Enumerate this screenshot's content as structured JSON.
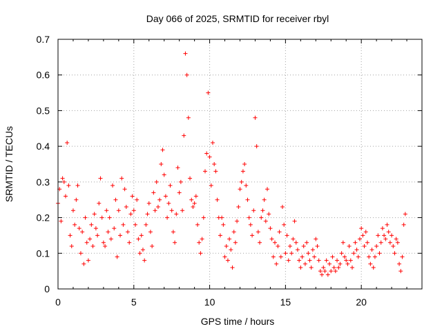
{
  "chart_data": {
    "type": "scatter",
    "title": "Day 066 of 2025, SRMTID for receiver rbyl",
    "xlabel": "GPS time / hours",
    "ylabel": "SRMTID / TECUs",
    "xlim": [
      0,
      24
    ],
    "ylim": [
      0,
      0.7
    ],
    "xticks": [
      0,
      5,
      10,
      15,
      20
    ],
    "yticks": [
      0,
      0.1,
      0.2,
      0.3,
      0.4,
      0.5,
      0.6,
      0.7
    ],
    "xtick_labels": [
      "0",
      "5",
      "10",
      "15",
      "20"
    ],
    "ytick_labels": [
      "0",
      "0.1",
      "0.2",
      "0.3",
      "0.4",
      "0.5",
      "0.6",
      "0.7"
    ],
    "grid": true,
    "marker": "+",
    "series": [
      {
        "name": "SRMTID",
        "color": "#ff0000",
        "x": [
          0.0,
          0.1,
          0.2,
          0.3,
          0.4,
          0.5,
          0.6,
          0.7,
          0.8,
          0.9,
          1.0,
          1.1,
          1.2,
          1.3,
          1.4,
          1.5,
          1.6,
          1.7,
          1.8,
          1.9,
          2.0,
          2.1,
          2.2,
          2.3,
          2.4,
          2.5,
          2.6,
          2.7,
          2.8,
          2.9,
          3.0,
          3.1,
          3.2,
          3.3,
          3.4,
          3.5,
          3.6,
          3.7,
          3.8,
          3.9,
          4.0,
          4.1,
          4.2,
          4.3,
          4.4,
          4.5,
          4.6,
          4.7,
          4.8,
          4.9,
          5.0,
          5.1,
          5.2,
          5.3,
          5.4,
          5.5,
          5.6,
          5.7,
          5.8,
          5.9,
          6.0,
          6.1,
          6.2,
          6.3,
          6.4,
          6.5,
          6.6,
          6.7,
          6.8,
          6.9,
          7.0,
          7.1,
          7.2,
          7.3,
          7.4,
          7.5,
          7.6,
          7.7,
          7.8,
          7.9,
          8.0,
          8.1,
          8.2,
          8.3,
          8.4,
          8.5,
          8.6,
          8.7,
          8.8,
          8.9,
          9.0,
          9.1,
          9.2,
          9.3,
          9.4,
          9.5,
          9.6,
          9.7,
          9.8,
          9.9,
          10.0,
          10.1,
          10.2,
          10.3,
          10.4,
          10.5,
          10.6,
          10.7,
          10.8,
          10.9,
          11.0,
          11.1,
          11.2,
          11.3,
          11.4,
          11.5,
          11.6,
          11.7,
          11.8,
          11.9,
          12.0,
          12.1,
          12.2,
          12.3,
          12.4,
          12.5,
          12.6,
          12.7,
          12.8,
          12.9,
          13.0,
          13.1,
          13.2,
          13.3,
          13.4,
          13.5,
          13.6,
          13.7,
          13.8,
          13.9,
          14.0,
          14.1,
          14.2,
          14.3,
          14.4,
          14.5,
          14.6,
          14.7,
          14.8,
          14.9,
          15.0,
          15.1,
          15.2,
          15.3,
          15.4,
          15.5,
          15.6,
          15.7,
          15.8,
          15.9,
          16.0,
          16.1,
          16.2,
          16.3,
          16.4,
          16.5,
          16.6,
          16.7,
          16.8,
          16.9,
          17.0,
          17.1,
          17.2,
          17.3,
          17.4,
          17.5,
          17.6,
          17.7,
          17.8,
          17.9,
          18.0,
          18.1,
          18.2,
          18.3,
          18.4,
          18.5,
          18.6,
          18.7,
          18.8,
          18.9,
          19.0,
          19.1,
          19.2,
          19.3,
          19.4,
          19.5,
          19.6,
          19.7,
          19.8,
          19.9,
          20.0,
          20.1,
          20.2,
          20.3,
          20.4,
          20.5,
          20.6,
          20.7,
          20.8,
          20.9,
          21.0,
          21.1,
          21.2,
          21.3,
          21.4,
          21.5,
          21.6,
          21.7,
          21.8,
          21.9,
          22.0,
          22.1,
          22.2,
          22.3,
          22.4,
          22.5,
          22.6,
          22.7,
          22.8,
          22.9
        ],
        "y": [
          0.24,
          0.28,
          0.19,
          0.31,
          0.3,
          0.26,
          0.41,
          0.29,
          0.15,
          0.12,
          0.22,
          0.18,
          0.25,
          0.29,
          0.17,
          0.1,
          0.16,
          0.07,
          0.2,
          0.13,
          0.08,
          0.14,
          0.18,
          0.12,
          0.21,
          0.17,
          0.15,
          0.24,
          0.31,
          0.2,
          0.13,
          0.12,
          0.22,
          0.16,
          0.2,
          0.14,
          0.29,
          0.17,
          0.25,
          0.09,
          0.22,
          0.15,
          0.31,
          0.18,
          0.28,
          0.23,
          0.16,
          0.13,
          0.21,
          0.26,
          0.22,
          0.18,
          0.25,
          0.14,
          0.1,
          0.15,
          0.11,
          0.08,
          0.18,
          0.21,
          0.24,
          0.16,
          0.12,
          0.27,
          0.22,
          0.3,
          0.23,
          0.25,
          0.35,
          0.39,
          0.32,
          0.26,
          0.2,
          0.24,
          0.29,
          0.22,
          0.16,
          0.13,
          0.21,
          0.34,
          0.27,
          0.3,
          0.22,
          0.43,
          0.66,
          0.6,
          0.48,
          0.31,
          0.25,
          0.23,
          0.24,
          0.26,
          0.18,
          0.13,
          0.1,
          0.14,
          0.2,
          0.33,
          0.38,
          0.55,
          0.37,
          0.29,
          0.41,
          0.35,
          0.33,
          0.25,
          0.2,
          0.15,
          0.2,
          0.18,
          0.09,
          0.12,
          0.08,
          0.14,
          0.11,
          0.06,
          0.16,
          0.13,
          0.19,
          0.23,
          0.28,
          0.3,
          0.33,
          0.35,
          0.29,
          0.25,
          0.2,
          0.18,
          0.15,
          0.22,
          0.48,
          0.4,
          0.16,
          0.13,
          0.2,
          0.22,
          0.25,
          0.19,
          0.28,
          0.21,
          0.17,
          0.14,
          0.09,
          0.13,
          0.07,
          0.12,
          0.16,
          0.09,
          0.23,
          0.18,
          0.1,
          0.15,
          0.08,
          0.12,
          0.1,
          0.14,
          0.19,
          0.13,
          0.11,
          0.08,
          0.06,
          0.09,
          0.12,
          0.07,
          0.13,
          0.1,
          0.08,
          0.06,
          0.11,
          0.09,
          0.14,
          0.12,
          0.08,
          0.05,
          0.04,
          0.06,
          0.05,
          0.08,
          0.04,
          0.07,
          0.05,
          0.09,
          0.06,
          0.05,
          0.08,
          0.06,
          0.07,
          0.1,
          0.13,
          0.09,
          0.08,
          0.07,
          0.12,
          0.08,
          0.06,
          0.1,
          0.13,
          0.11,
          0.09,
          0.14,
          0.17,
          0.15,
          0.12,
          0.16,
          0.13,
          0.09,
          0.07,
          0.11,
          0.06,
          0.09,
          0.12,
          0.15,
          0.1,
          0.13,
          0.17,
          0.15,
          0.14,
          0.18,
          0.16,
          0.13,
          0.15,
          0.12,
          0.1,
          0.14,
          0.13,
          0.07,
          0.05,
          0.09,
          0.18,
          0.21
        ]
      }
    ]
  }
}
